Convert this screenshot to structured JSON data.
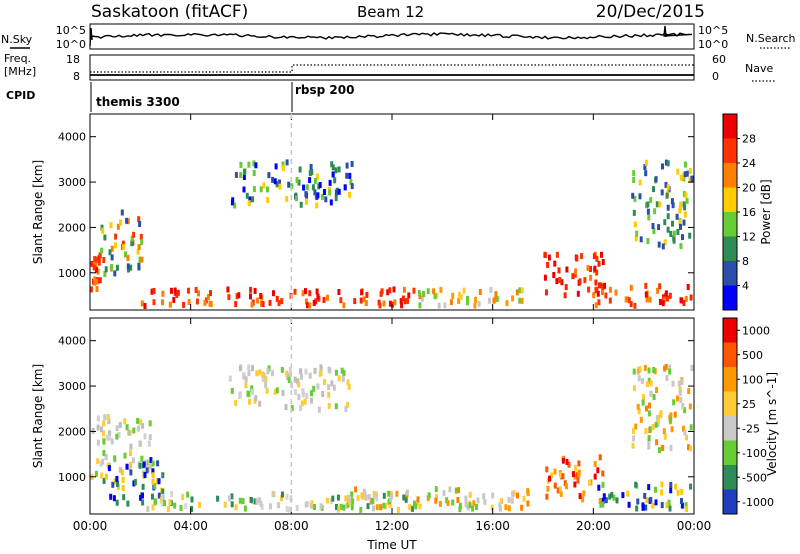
{
  "header": {
    "station": "Saskatoon (fitACF)",
    "beam": "Beam 12",
    "date": "20/Dec/2015"
  },
  "status_panel": {
    "nsky_label": "N.Sky",
    "nsky_ticks": [
      "10^5",
      "10^0"
    ],
    "nsearch_label": "N.Search",
    "nsearch_ticks": [
      "10^5",
      "10^0"
    ],
    "freq_label": "Freq.",
    "freq_unit": "[MHz]",
    "freq_ticks": [
      "18",
      "8"
    ],
    "nave_label": "Nave",
    "nave_ticks": [
      "60",
      "0"
    ],
    "cpid_label": "CPID",
    "cpid_entries": [
      {
        "name": "themis 3300",
        "start": "00:00"
      },
      {
        "name": "rbsp 200",
        "start": "08:00"
      }
    ]
  },
  "chart_data": [
    {
      "type": "heatmap",
      "title": "",
      "xlabel": "Time UT",
      "ylabel": "Slant Range [km]",
      "x_tick_labels": [
        "00:00",
        "04:00",
        "08:00",
        "12:00",
        "16:00",
        "20:00",
        "00:00"
      ],
      "x_range_hours": [
        0,
        24
      ],
      "ylim": [
        180,
        4500
      ],
      "y_tick_labels": [
        "1000",
        "2000",
        "3000",
        "4000"
      ],
      "y_tick_values": [
        1000,
        2000,
        3000,
        4000
      ],
      "colorbar": {
        "label": "Power [dB]",
        "tick_labels": [
          "4",
          "8",
          "12",
          "16",
          "20",
          "24",
          "28"
        ],
        "colors": [
          "#0000ff",
          "#2b4fa8",
          "#2e8b57",
          "#66cc33",
          "#ffcc00",
          "#ff8000",
          "#ff3300",
          "#ee0000"
        ]
      },
      "features": [
        {
          "time_h": [
            0.0,
            0.5
          ],
          "range_km": [
            500,
            1500
          ],
          "dominant": "red"
        },
        {
          "time_h": [
            0.4,
            2.2
          ],
          "range_km": [
            900,
            2400
          ],
          "dominant": "green-orange"
        },
        {
          "time_h": [
            2.0,
            13.0
          ],
          "range_km": [
            200,
            700
          ],
          "dominant": "red"
        },
        {
          "time_h": [
            5.5,
            10.5
          ],
          "range_km": [
            2400,
            3500
          ],
          "dominant": "blue-green"
        },
        {
          "time_h": [
            13.0,
            17.5
          ],
          "range_km": [
            200,
            700
          ],
          "dominant": "orange"
        },
        {
          "time_h": [
            18.0,
            20.5
          ],
          "range_km": [
            400,
            1500
          ],
          "dominant": "red"
        },
        {
          "time_h": [
            20.0,
            24.0
          ],
          "range_km": [
            200,
            800
          ],
          "dominant": "red"
        },
        {
          "time_h": [
            21.5,
            24.0
          ],
          "range_km": [
            1500,
            3500
          ],
          "dominant": "green-blue"
        }
      ],
      "reference_line_hour": 8.0
    },
    {
      "type": "heatmap",
      "title": "",
      "xlabel": "Time UT",
      "ylabel": "Slant Range [km]",
      "x_tick_labels": [
        "00:00",
        "04:00",
        "08:00",
        "12:00",
        "16:00",
        "20:00",
        "00:00"
      ],
      "x_range_hours": [
        0,
        24
      ],
      "ylim": [
        180,
        4500
      ],
      "y_tick_labels": [
        "1000",
        "2000",
        "3000",
        "4000"
      ],
      "y_tick_values": [
        1000,
        2000,
        3000,
        4000
      ],
      "colorbar": {
        "label": "Velocity [m s^-1]",
        "tick_labels": [
          "1000",
          "500",
          "100",
          "25",
          "-25",
          "-100",
          "-500",
          "-1000"
        ],
        "colors": [
          "#1f3fbf",
          "#2e8b57",
          "#66cc33",
          "#c8c8c8",
          "#ffcc33",
          "#ff9900",
          "#ff5500",
          "#ee0000"
        ]
      },
      "features": [
        {
          "time_h": [
            0.0,
            2.5
          ],
          "range_km": [
            900,
            2400
          ],
          "dominant": "gray"
        },
        {
          "time_h": [
            0.5,
            3.0
          ],
          "range_km": [
            300,
            1500
          ],
          "dominant": "blue-green"
        },
        {
          "time_h": [
            2.0,
            13.0
          ],
          "range_km": [
            200,
            700
          ],
          "dominant": "gray-green"
        },
        {
          "time_h": [
            5.5,
            10.5
          ],
          "range_km": [
            2400,
            3500
          ],
          "dominant": "gray"
        },
        {
          "time_h": [
            10.0,
            17.5
          ],
          "range_km": [
            200,
            800
          ],
          "dominant": "orange"
        },
        {
          "time_h": [
            18.0,
            20.5
          ],
          "range_km": [
            400,
            1500
          ],
          "dominant": "orange-red"
        },
        {
          "time_h": [
            20.0,
            24.0
          ],
          "range_km": [
            200,
            900
          ],
          "dominant": "blue-green"
        },
        {
          "time_h": [
            21.5,
            24.0
          ],
          "range_km": [
            1500,
            3500
          ],
          "dominant": "orange"
        }
      ],
      "reference_line_hour": 8.0
    }
  ]
}
